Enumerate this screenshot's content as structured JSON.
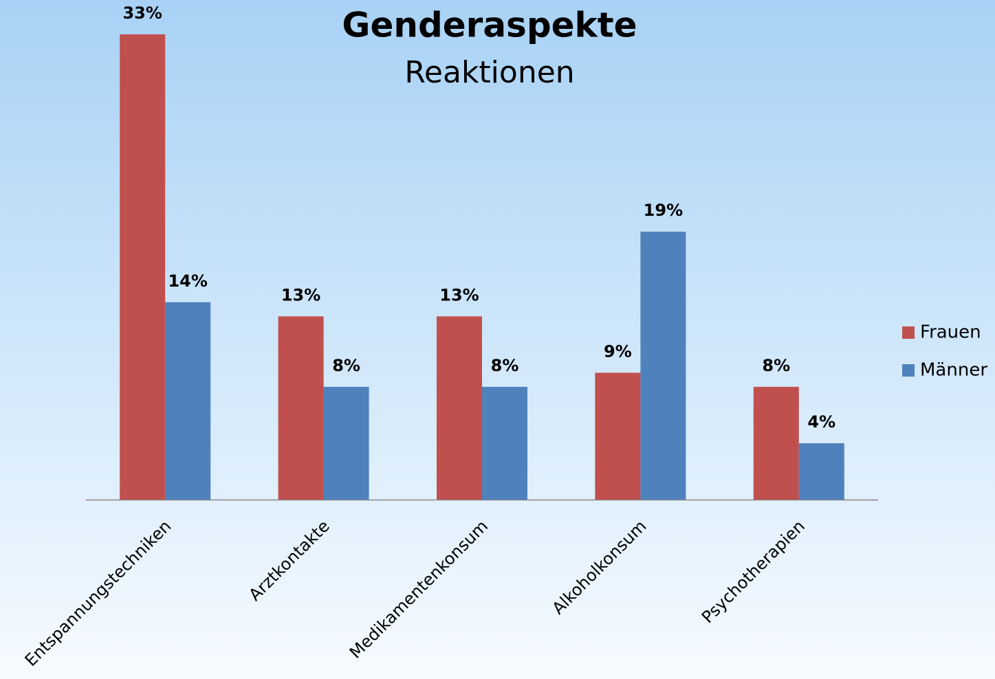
{
  "chart_data": {
    "type": "bar",
    "title": "Genderaspekte",
    "subtitle": "Reaktionen",
    "categories": [
      "Entspannungstechniken",
      "Arztkontakte",
      "Medikamentenkonsum",
      "Alkoholkonsum",
      "Psychotherapien"
    ],
    "series": [
      {
        "name": "Frauen",
        "color": "#c0504d",
        "values": [
          33,
          13,
          13,
          9,
          8
        ],
        "value_labels": [
          "33%",
          "13%",
          "13%",
          "9%",
          "8%"
        ]
      },
      {
        "name": "Männer",
        "color": "#4f81bd",
        "values": [
          14,
          8,
          8,
          19,
          4
        ],
        "value_labels": [
          "14%",
          "8%",
          "8%",
          "19%",
          "4%"
        ]
      }
    ],
    "legend": "right"
  }
}
